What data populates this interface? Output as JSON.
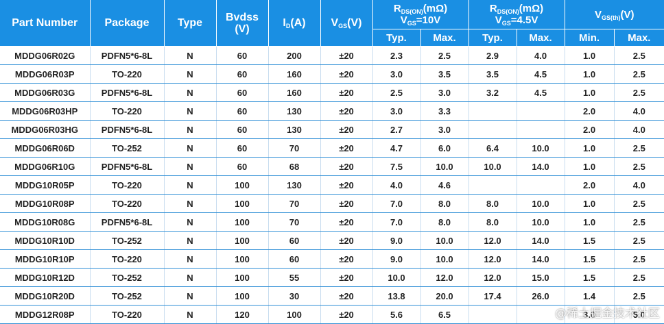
{
  "header": {
    "part_number": "Part Number",
    "package": "Package",
    "type": "Type",
    "bvdss_line1": "Bvdss",
    "bvdss_line2": "(V)",
    "id_main": "I",
    "id_sub": "D",
    "id_unit": "(A)",
    "vgs_main": "V",
    "vgs_sub": "GS",
    "vgs_unit": "(V)",
    "rds10_main": "R",
    "rds10_sub": "DS(ON)",
    "rds10_unit": "(mΩ)",
    "rds10_cond_main": "V",
    "rds10_cond_sub": "GS",
    "rds10_cond_val": "=10V",
    "rds45_main": "R",
    "rds45_sub": "DS(ON)",
    "rds45_unit": "(mΩ)",
    "rds45_cond_main": "V",
    "rds45_cond_sub": "GS",
    "rds45_cond_val": "=4.5V",
    "vth_main": "V",
    "vth_sub": "GS(th)",
    "vth_unit": "(V)",
    "typ": "Typ.",
    "max": "Max.",
    "min": "Min."
  },
  "rows": [
    [
      "MDDG06R02G",
      "PDFN5*6-8L",
      "N",
      "60",
      "200",
      "±20",
      "2.3",
      "2.5",
      "2.9",
      "4.0",
      "1.0",
      "2.5"
    ],
    [
      "MDDG06R03P",
      "TO-220",
      "N",
      "60",
      "160",
      "±20",
      "3.0",
      "3.5",
      "3.5",
      "4.5",
      "1.0",
      "2.5"
    ],
    [
      "MDDG06R03G",
      "PDFN5*6-8L",
      "N",
      "60",
      "160",
      "±20",
      "2.5",
      "3.0",
      "3.2",
      "4.5",
      "1.0",
      "2.5"
    ],
    [
      "MDDG06R03HP",
      "TO-220",
      "N",
      "60",
      "130",
      "±20",
      "3.0",
      "3.3",
      "",
      "",
      "2.0",
      "4.0"
    ],
    [
      "MDDG06R03HG",
      "PDFN5*6-8L",
      "N",
      "60",
      "130",
      "±20",
      "2.7",
      "3.0",
      "",
      "",
      "2.0",
      "4.0"
    ],
    [
      "MDDG06R06D",
      "TO-252",
      "N",
      "60",
      "70",
      "±20",
      "4.7",
      "6.0",
      "6.4",
      "10.0",
      "1.0",
      "2.5"
    ],
    [
      "MDDG06R10G",
      "PDFN5*6-8L",
      "N",
      "60",
      "68",
      "±20",
      "7.5",
      "10.0",
      "10.0",
      "14.0",
      "1.0",
      "2.5"
    ],
    [
      "MDDG10R05P",
      "TO-220",
      "N",
      "100",
      "130",
      "±20",
      "4.0",
      "4.6",
      "",
      "",
      "2.0",
      "4.0"
    ],
    [
      "MDDG10R08P",
      "TO-220",
      "N",
      "100",
      "70",
      "±20",
      "7.0",
      "8.0",
      "8.0",
      "10.0",
      "1.0",
      "2.5"
    ],
    [
      "MDDG10R08G",
      "PDFN5*6-8L",
      "N",
      "100",
      "70",
      "±20",
      "7.0",
      "8.0",
      "8.0",
      "10.0",
      "1.0",
      "2.5"
    ],
    [
      "MDDG10R10D",
      "TO-252",
      "N",
      "100",
      "60",
      "±20",
      "9.0",
      "10.0",
      "12.0",
      "14.0",
      "1.5",
      "2.5"
    ],
    [
      "MDDG10R10P",
      "TO-220",
      "N",
      "100",
      "60",
      "±20",
      "9.0",
      "10.0",
      "12.0",
      "14.0",
      "1.5",
      "2.5"
    ],
    [
      "MDDG10R12D",
      "TO-252",
      "N",
      "100",
      "55",
      "±20",
      "10.0",
      "12.0",
      "12.0",
      "15.0",
      "1.5",
      "2.5"
    ],
    [
      "MDDG10R20D",
      "TO-252",
      "N",
      "100",
      "30",
      "±20",
      "13.8",
      "20.0",
      "17.4",
      "26.0",
      "1.4",
      "2.5"
    ],
    [
      "MDDG12R08P",
      "TO-220",
      "N",
      "120",
      "100",
      "±20",
      "5.6",
      "6.5",
      "",
      "",
      "3.0",
      "5.0"
    ]
  ],
  "watermark": "@稀土掘金技术社区"
}
